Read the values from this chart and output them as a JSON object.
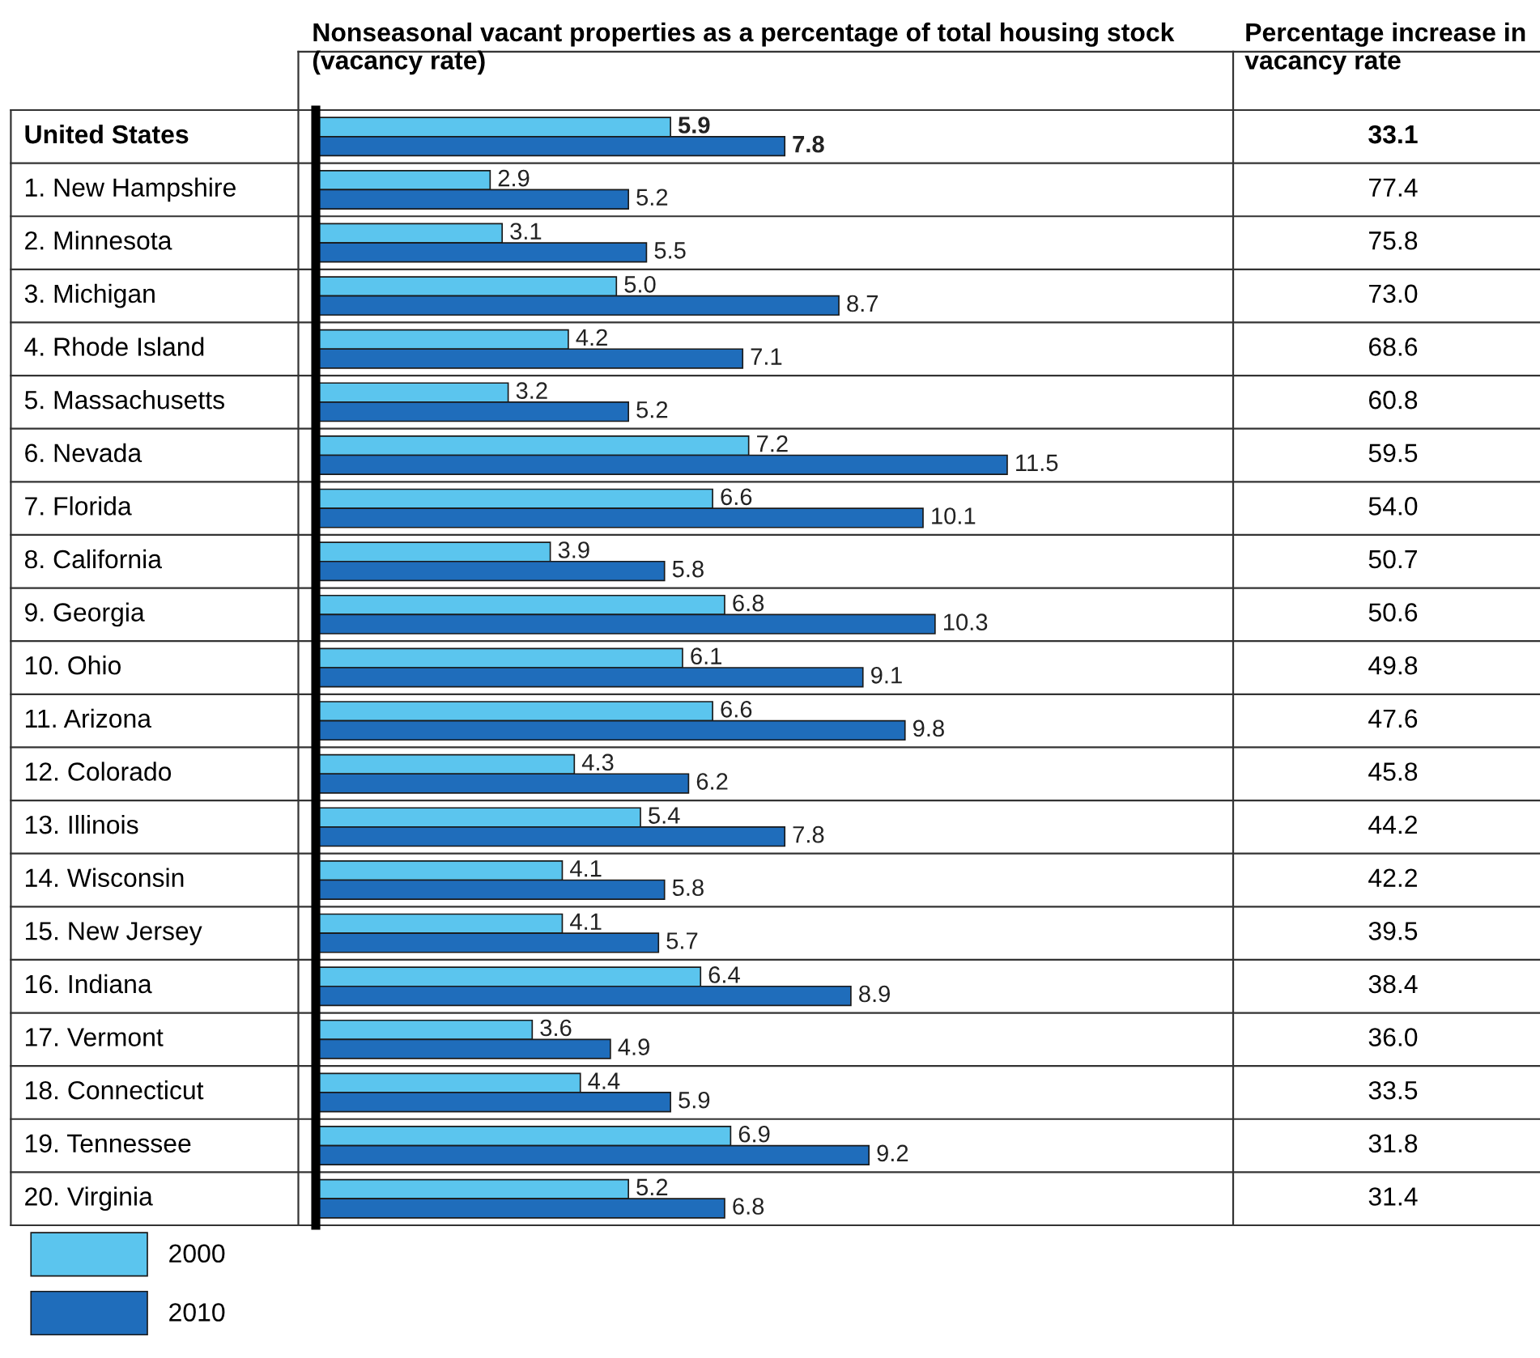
{
  "chart_data": {
    "type": "bar",
    "orientation": "horizontal",
    "title": "Nonseasonal vacant properties as a percentage of total housing stock (vacancy rate)",
    "categories": [
      "United States",
      "1. New Hampshire",
      "2. Minnesota",
      "3. Michigan",
      "4. Rhode Island",
      "5. Massachusetts",
      "6. Nevada",
      "7. Florida",
      "8. California",
      "9. Georgia",
      "10. Ohio",
      "11. Arizona",
      "12. Colorado",
      "13. Illinois",
      "14. Wisconsin",
      "15. New Jersey",
      "16. Indiana",
      "17. Vermont",
      "18. Connecticut",
      "19. Tennessee",
      "20. Virginia"
    ],
    "series": [
      {
        "name": "2000",
        "color": "#5bc5ee",
        "values": [
          5.9,
          2.9,
          3.1,
          5.0,
          4.2,
          3.2,
          7.2,
          6.6,
          3.9,
          6.8,
          6.1,
          6.6,
          4.3,
          5.4,
          4.1,
          4.1,
          6.4,
          3.6,
          4.4,
          6.9,
          5.2
        ],
        "value_labels": [
          "5.9",
          "2.9",
          "3.1",
          "5.0",
          "4.2",
          "3.2",
          "7.2",
          "6.6",
          "3.9",
          "6.8",
          "6.1",
          "6.6",
          "4.3",
          "5.4",
          "4.1",
          "4.1",
          "6.4",
          "3.6",
          "4.4",
          "6.9",
          "5.2"
        ]
      },
      {
        "name": "2010",
        "color": "#1f6dbb",
        "values": [
          7.8,
          5.2,
          5.5,
          8.7,
          7.1,
          5.2,
          11.5,
          10.1,
          5.8,
          10.3,
          9.1,
          9.8,
          6.2,
          7.8,
          5.8,
          5.7,
          8.9,
          4.9,
          5.9,
          9.2,
          6.8
        ]
      }
    ],
    "annotations": [
      "Percentage increase in vacancy rate",
      "33.1",
      "77.4",
      "75.8",
      "73.0",
      "68.6",
      "60.8",
      "59.5",
      "54.0",
      "50.7",
      "50.6",
      "49.8",
      "47.6",
      "45.8",
      "44.2",
      "42.2",
      "39.5",
      "38.4",
      "36.0",
      "33.5",
      "31.8",
      "31.4"
    ],
    "data_labels": true,
    "legend": "bottom left"
  }
}
